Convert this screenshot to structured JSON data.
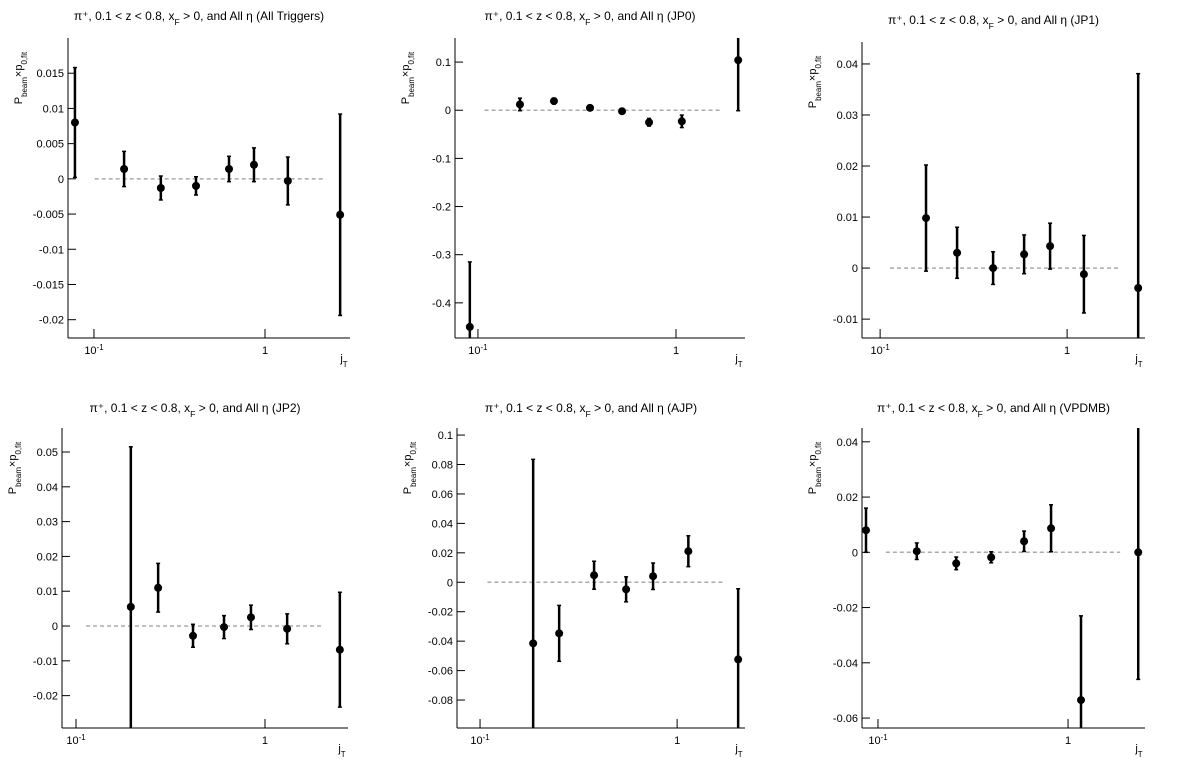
{
  "chart_data": [
    {
      "type": "scatter",
      "title": "π⁺, 0.1 < z < 0.8, x_{F} > 0, and All η (All Triggers)",
      "y_label": "P_{beam}×p_{0,fit}",
      "x_label": "j_{T}",
      "log_x": true,
      "color": "#000000",
      "x": [
        0.0774,
        0.15,
        0.246,
        0.395,
        0.616,
        0.862,
        1.36,
        2.75
      ],
      "values": [
        0.008,
        0.0014,
        -0.0013,
        -0.001,
        0.0014,
        0.002,
        -0.0003,
        -0.0051
      ],
      "errors": [
        0.0078,
        0.0025,
        0.0017,
        0.0013,
        0.0018,
        0.0024,
        0.0034,
        0.0143
      ],
      "xlim": [
        0.0705,
        3.14
      ],
      "ylim": [
        -0.0226,
        0.02
      ],
      "xticks": [
        {
          "value": 0.1,
          "label": "10^{-1}"
        },
        1
      ],
      "yticks": [
        0.015,
        0.01,
        0.005,
        0,
        -0.005,
        -0.01,
        -0.015,
        -0.02
      ],
      "reference_line": 0,
      "reference_x": [
        0.101,
        2.24
      ],
      "reference_color": "#aaaaaa"
    },
    {
      "type": "scatter",
      "title": "π⁺, 0.1 < z < 0.8, x_{F} > 0, and All η (JP0)",
      "y_label": "P_{beam}×p_{0,fit}",
      "x_label": "j_{T}",
      "log_x": true,
      "color": "#000000",
      "x": [
        0.091,
        0.163,
        0.242,
        0.368,
        0.534,
        0.731,
        1.07,
        2.06
      ],
      "values": [
        -0.45,
        0.012,
        0.019,
        0.005,
        -0.002,
        -0.025,
        -0.023,
        0.104
      ],
      "errors": [
        0.135,
        0.013,
        0.006,
        0.004,
        0.003,
        0.008,
        0.013,
        0.105
      ],
      "xlim": [
        0.0766,
        2.23
      ],
      "ylim": [
        -0.473,
        0.15
      ],
      "xticks": [
        {
          "value": 0.1,
          "label": "10^{-1}"
        },
        1
      ],
      "yticks": [
        0.1,
        0,
        -0.1,
        -0.2,
        -0.3,
        -0.4
      ],
      "reference_line": 0,
      "reference_x": [
        0.108,
        1.67
      ],
      "reference_color": "#aaaaaa"
    },
    {
      "type": "scatter",
      "title": "π⁺, 0.1 < z < 0.8, x_{F} > 0, and All η (JP1)",
      "y_label": "P_{beam}×p_{0,fit}",
      "x_label": "j_{T}",
      "log_x": true,
      "color": "#000000",
      "x": [
        0.176,
        0.258,
        0.402,
        0.589,
        0.811,
        1.23,
        2.4
      ],
      "values": [
        0.0098,
        0.003,
        0,
        0.0027,
        0.0043,
        -0.0012,
        -0.0039
      ],
      "errors": [
        0.0104,
        0.005,
        0.0032,
        0.0038,
        0.0045,
        0.0076,
        0.042
      ],
      "xlim": [
        0.08,
        2.61
      ],
      "ylim": [
        -0.0137,
        0.0443
      ],
      "xticks": [
        {
          "value": 0.1,
          "label": "10^{-1}"
        },
        1
      ],
      "yticks": [
        0.04,
        0.03,
        0.02,
        0.01,
        0,
        -0.01
      ],
      "reference_line": 0,
      "reference_x": [
        0.113,
        1.92
      ],
      "reference_color": "#aaaaaa"
    },
    {
      "type": "scatter",
      "title": "π⁺, 0.1 < z < 0.8, x_{F} > 0, and All η (JP2)",
      "y_label": "P_{beam}×p_{0,fit}",
      "x_label": "j_{T}",
      "log_x": true,
      "color": "#000000",
      "x": [
        0.195,
        0.272,
        0.416,
        0.607,
        0.843,
        1.31,
        2.49
      ],
      "values": [
        0.0055,
        0.011,
        -0.0028,
        -0.0003,
        0.0025,
        -0.0008,
        -0.0068
      ],
      "errors": [
        0.046,
        0.007,
        0.0033,
        0.0033,
        0.0035,
        0.0043,
        0.0165
      ],
      "xlim": [
        0.0843,
        2.75
      ],
      "ylim": [
        -0.0293,
        0.0569
      ],
      "xticks": [
        {
          "value": 0.1,
          "label": "10^{-1}"
        },
        1
      ],
      "yticks": [
        0.05,
        0.04,
        0.03,
        0.02,
        0.01,
        0,
        -0.01,
        -0.02
      ],
      "reference_line": 0,
      "reference_x": [
        0.113,
        2.0
      ],
      "reference_color": "#aaaaaa"
    },
    {
      "type": "scatter",
      "title": "π⁺, 0.1 < z < 0.8, x_{F} > 0, and All η (AJP)",
      "y_label": "P_{beam}×p_{0,fit}",
      "x_label": "j_{T}",
      "log_x": true,
      "color": "#000000",
      "x": [
        0.186,
        0.252,
        0.379,
        0.551,
        0.755,
        1.14,
        2.04
      ],
      "values": [
        -0.0415,
        -0.0347,
        0.0048,
        -0.0048,
        0.0041,
        0.0211,
        -0.0524
      ],
      "errors": [
        0.125,
        0.019,
        0.0095,
        0.0085,
        0.009,
        0.0105,
        0.048
      ],
      "xlim": [
        0.0764,
        2.21
      ],
      "ylim": [
        -0.099,
        0.1048
      ],
      "xticks": [
        {
          "value": 0.1,
          "label": "10^{-1}"
        },
        1
      ],
      "yticks": [
        0.1,
        0.08,
        0.06,
        0.04,
        0.02,
        0,
        -0.02,
        -0.04,
        -0.06,
        -0.08
      ],
      "reference_line": 0,
      "reference_x": [
        0.109,
        1.75
      ],
      "reference_color": "#aaaaaa"
    },
    {
      "type": "scatter",
      "title": "π⁺, 0.1 < z < 0.8, x_{F} > 0, and All η (VPDMB)",
      "y_label": "P_{beam}×p_{0,fit}",
      "x_label": "j_{T}",
      "log_x": true,
      "color": "#000000",
      "x": [
        0.0865,
        0.16,
        0.258,
        0.394,
        0.587,
        0.814,
        1.17,
        2.34
      ],
      "values": [
        0.008,
        0.0004,
        -0.004,
        -0.0018,
        0.004,
        0.0087,
        -0.0535,
        0
      ],
      "errors": [
        0.008,
        0.003,
        0.0023,
        0.002,
        0.0037,
        0.0085,
        0.0305,
        0.046
      ],
      "xlim": [
        0.0824,
        2.54
      ],
      "ylim": [
        -0.0636,
        0.045
      ],
      "xticks": [
        {
          "value": 0.1,
          "label": "10^{-1}"
        },
        1
      ],
      "yticks": [
        0.04,
        0.02,
        0,
        -0.02,
        -0.04,
        -0.06
      ],
      "reference_line": 0,
      "reference_x": [
        0.11,
        1.88
      ],
      "reference_color": "#aaaaaa"
    }
  ]
}
